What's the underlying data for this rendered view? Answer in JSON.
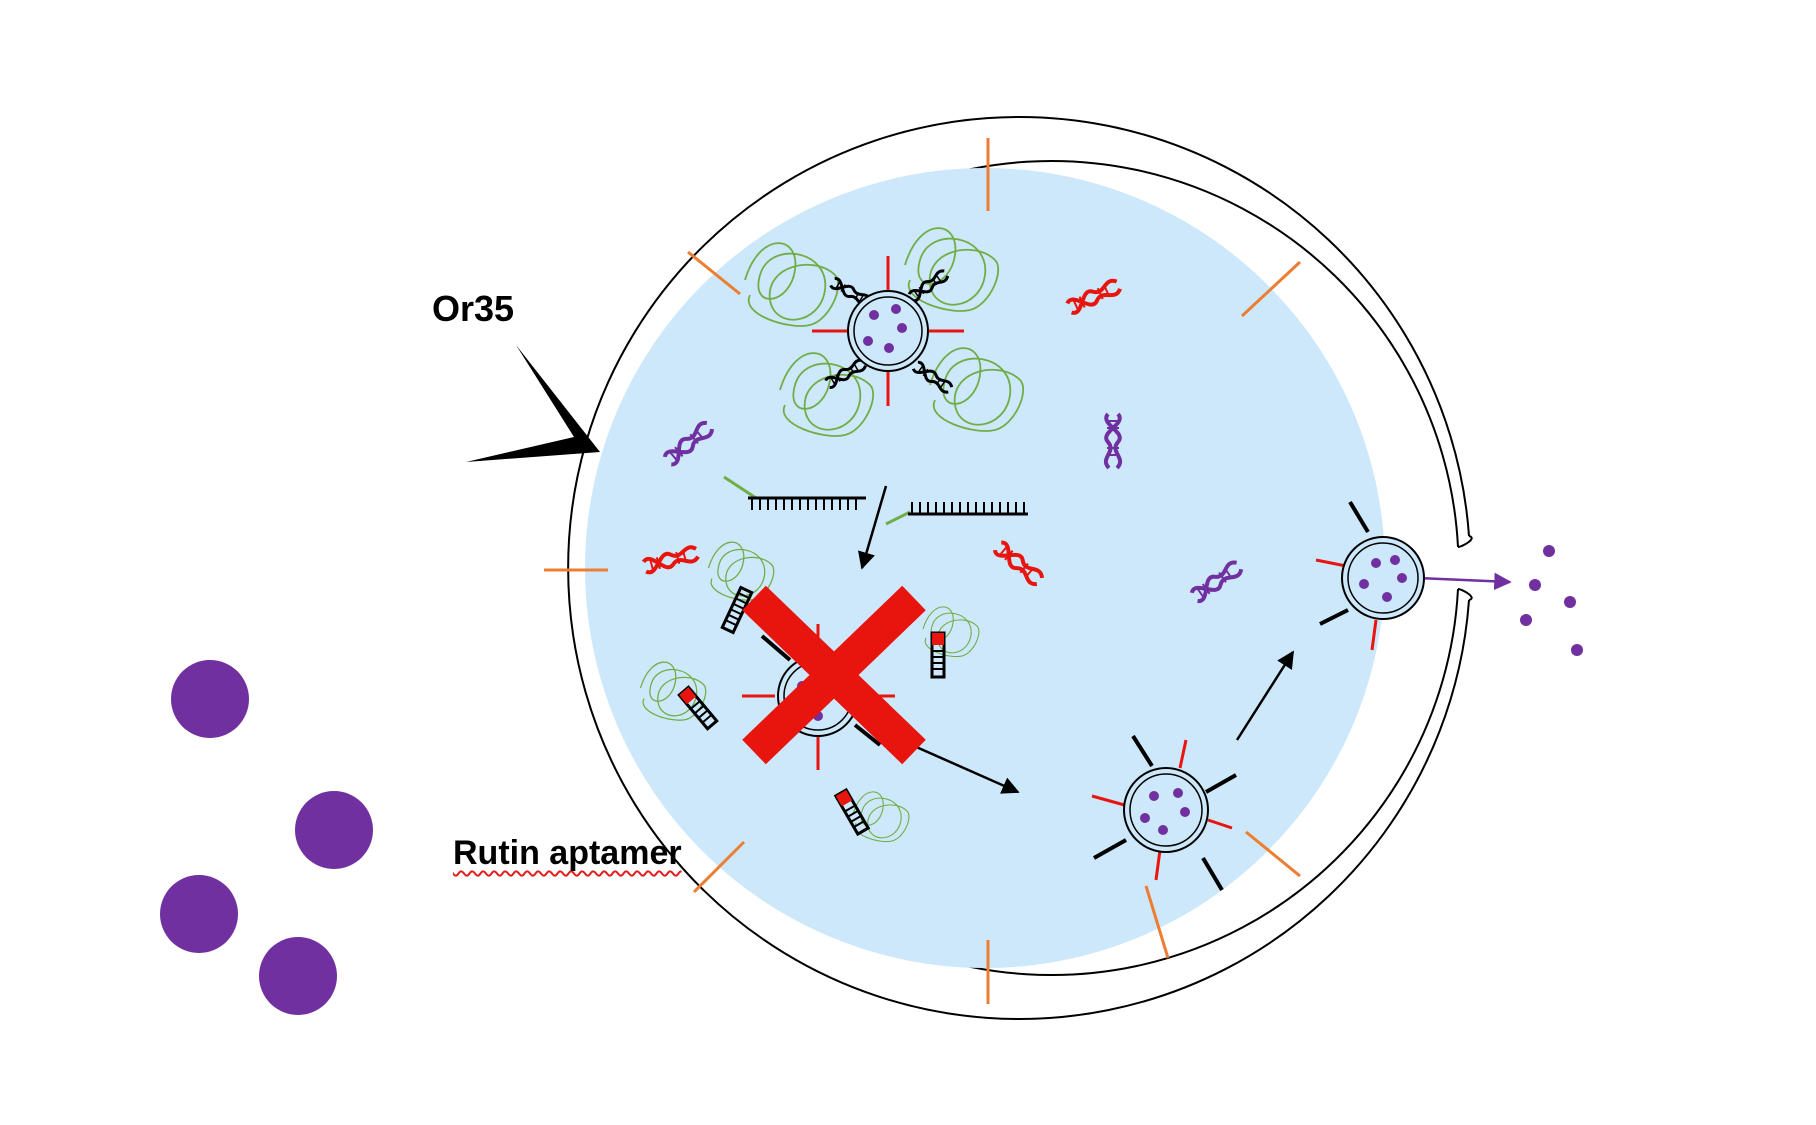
{
  "labels": {
    "receptor": "Or35",
    "aptamer": "Rutin aptamer"
  },
  "colors": {
    "cell_fill": "#cde8fb",
    "ligand": "#7030a0",
    "aptamer": "#4472c4",
    "block_mark": "#e8140e",
    "pore_protein": "#ed7d31",
    "dna_red": "#e8140e",
    "dna_purple": "#7030a0",
    "polymer": "#70ad47",
    "outline": "#000000"
  },
  "icons": {
    "receptor": "black-wedge-receptor-icon",
    "aptamer": "crescent-aptamer-icon",
    "dna": "double-helix-icon",
    "vesicle": "vesicle-icon",
    "block": "red-x-icon",
    "arrow": "arrow-icon"
  }
}
